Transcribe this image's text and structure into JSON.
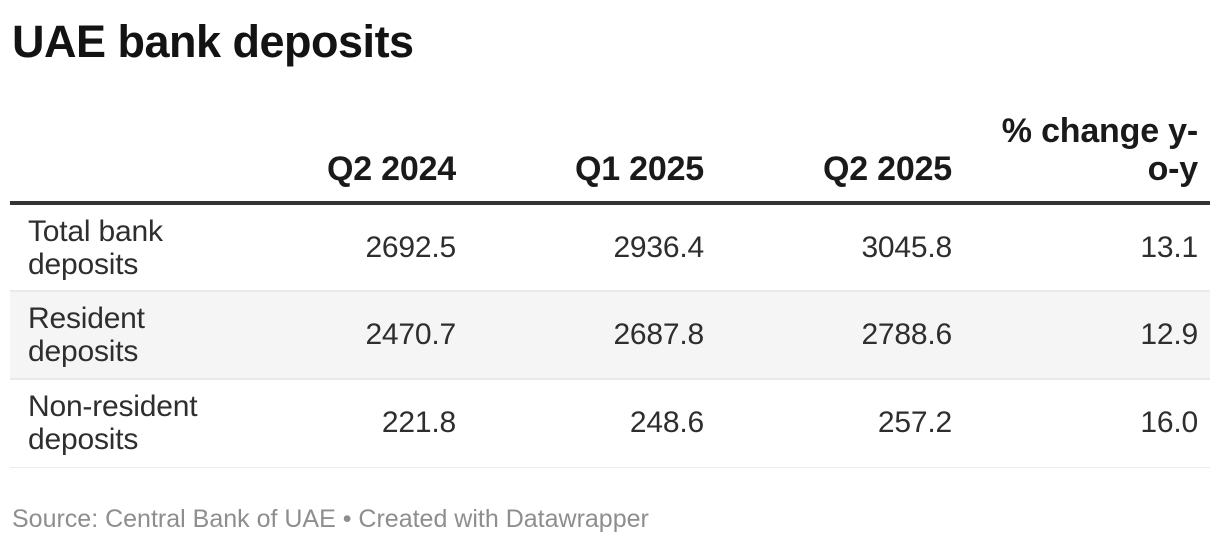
{
  "title": "UAE bank deposits",
  "table": {
    "columns": [
      "",
      "Q2 2024",
      "Q1 2025",
      "Q2 2025",
      "% change y-o-y"
    ],
    "rows": [
      {
        "label": "Total bank deposits",
        "values": [
          "2692.5",
          "2936.4",
          "3045.8",
          "13.1"
        ]
      },
      {
        "label": "Resident deposits",
        "values": [
          "2470.7",
          "2687.8",
          "2788.6",
          "12.9"
        ]
      },
      {
        "label": "Non-resident deposits",
        "values": [
          "221.8",
          "248.6",
          "257.2",
          "16.0"
        ]
      }
    ]
  },
  "footer": {
    "source": "Source: Central Bank of UAE • Created with Datawrapper"
  },
  "colors": {
    "stripe": "#f5f5f5",
    "row_border": "#e9e9e9",
    "header_border": "#333333",
    "source_text": "#8e8e8e",
    "title_text": "#131313",
    "body_text": "#2e2e2e"
  },
  "chart_data": {
    "type": "table",
    "title": "UAE bank deposits",
    "columns": [
      "Q2 2024",
      "Q1 2025",
      "Q2 2025",
      "% change y-o-y"
    ],
    "rows": [
      {
        "label": "Total bank deposits",
        "values": [
          2692.5,
          2936.4,
          3045.8,
          13.1
        ]
      },
      {
        "label": "Resident deposits",
        "values": [
          2470.7,
          2687.8,
          2788.6,
          12.9
        ]
      },
      {
        "label": "Non-resident deposits",
        "values": [
          221.8,
          248.6,
          257.2,
          16.0
        ]
      }
    ],
    "striped_rows": [
      1
    ],
    "source": "Source: Central Bank of UAE • Created with Datawrapper"
  }
}
